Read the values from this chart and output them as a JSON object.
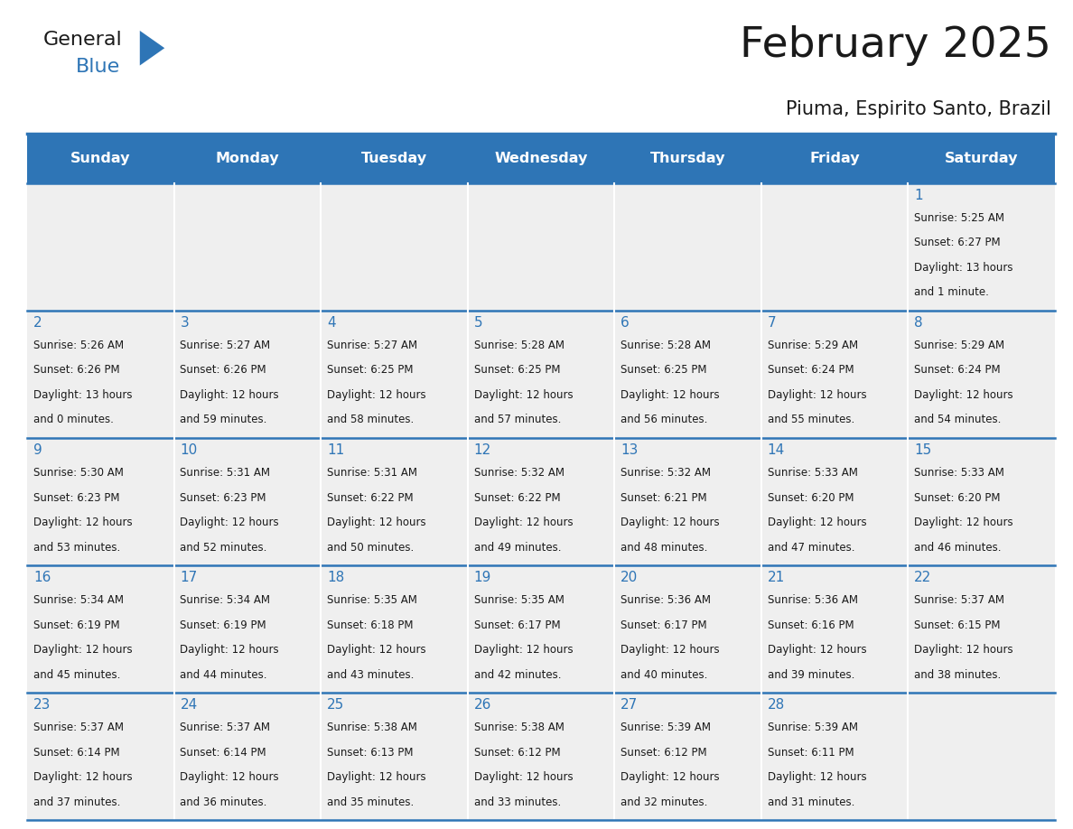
{
  "title": "February 2025",
  "subtitle": "Piuma, Espirito Santo, Brazil",
  "days_of_week": [
    "Sunday",
    "Monday",
    "Tuesday",
    "Wednesday",
    "Thursday",
    "Friday",
    "Saturday"
  ],
  "header_bg": "#2E75B6",
  "header_text": "#FFFFFF",
  "cell_bg": "#EFEFEF",
  "separator_color": "#2E75B6",
  "day_number_color": "#2E75B6",
  "text_color": "#1a1a1a",
  "logo_color_general": "#1a1a1a",
  "logo_color_blue": "#2E75B6",
  "weeks": [
    [
      {
        "day": null,
        "info": null
      },
      {
        "day": null,
        "info": null
      },
      {
        "day": null,
        "info": null
      },
      {
        "day": null,
        "info": null
      },
      {
        "day": null,
        "info": null
      },
      {
        "day": null,
        "info": null
      },
      {
        "day": 1,
        "info": "Sunrise: 5:25 AM\nSunset: 6:27 PM\nDaylight: 13 hours\nand 1 minute."
      }
    ],
    [
      {
        "day": 2,
        "info": "Sunrise: 5:26 AM\nSunset: 6:26 PM\nDaylight: 13 hours\nand 0 minutes."
      },
      {
        "day": 3,
        "info": "Sunrise: 5:27 AM\nSunset: 6:26 PM\nDaylight: 12 hours\nand 59 minutes."
      },
      {
        "day": 4,
        "info": "Sunrise: 5:27 AM\nSunset: 6:25 PM\nDaylight: 12 hours\nand 58 minutes."
      },
      {
        "day": 5,
        "info": "Sunrise: 5:28 AM\nSunset: 6:25 PM\nDaylight: 12 hours\nand 57 minutes."
      },
      {
        "day": 6,
        "info": "Sunrise: 5:28 AM\nSunset: 6:25 PM\nDaylight: 12 hours\nand 56 minutes."
      },
      {
        "day": 7,
        "info": "Sunrise: 5:29 AM\nSunset: 6:24 PM\nDaylight: 12 hours\nand 55 minutes."
      },
      {
        "day": 8,
        "info": "Sunrise: 5:29 AM\nSunset: 6:24 PM\nDaylight: 12 hours\nand 54 minutes."
      }
    ],
    [
      {
        "day": 9,
        "info": "Sunrise: 5:30 AM\nSunset: 6:23 PM\nDaylight: 12 hours\nand 53 minutes."
      },
      {
        "day": 10,
        "info": "Sunrise: 5:31 AM\nSunset: 6:23 PM\nDaylight: 12 hours\nand 52 minutes."
      },
      {
        "day": 11,
        "info": "Sunrise: 5:31 AM\nSunset: 6:22 PM\nDaylight: 12 hours\nand 50 minutes."
      },
      {
        "day": 12,
        "info": "Sunrise: 5:32 AM\nSunset: 6:22 PM\nDaylight: 12 hours\nand 49 minutes."
      },
      {
        "day": 13,
        "info": "Sunrise: 5:32 AM\nSunset: 6:21 PM\nDaylight: 12 hours\nand 48 minutes."
      },
      {
        "day": 14,
        "info": "Sunrise: 5:33 AM\nSunset: 6:20 PM\nDaylight: 12 hours\nand 47 minutes."
      },
      {
        "day": 15,
        "info": "Sunrise: 5:33 AM\nSunset: 6:20 PM\nDaylight: 12 hours\nand 46 minutes."
      }
    ],
    [
      {
        "day": 16,
        "info": "Sunrise: 5:34 AM\nSunset: 6:19 PM\nDaylight: 12 hours\nand 45 minutes."
      },
      {
        "day": 17,
        "info": "Sunrise: 5:34 AM\nSunset: 6:19 PM\nDaylight: 12 hours\nand 44 minutes."
      },
      {
        "day": 18,
        "info": "Sunrise: 5:35 AM\nSunset: 6:18 PM\nDaylight: 12 hours\nand 43 minutes."
      },
      {
        "day": 19,
        "info": "Sunrise: 5:35 AM\nSunset: 6:17 PM\nDaylight: 12 hours\nand 42 minutes."
      },
      {
        "day": 20,
        "info": "Sunrise: 5:36 AM\nSunset: 6:17 PM\nDaylight: 12 hours\nand 40 minutes."
      },
      {
        "day": 21,
        "info": "Sunrise: 5:36 AM\nSunset: 6:16 PM\nDaylight: 12 hours\nand 39 minutes."
      },
      {
        "day": 22,
        "info": "Sunrise: 5:37 AM\nSunset: 6:15 PM\nDaylight: 12 hours\nand 38 minutes."
      }
    ],
    [
      {
        "day": 23,
        "info": "Sunrise: 5:37 AM\nSunset: 6:14 PM\nDaylight: 12 hours\nand 37 minutes."
      },
      {
        "day": 24,
        "info": "Sunrise: 5:37 AM\nSunset: 6:14 PM\nDaylight: 12 hours\nand 36 minutes."
      },
      {
        "day": 25,
        "info": "Sunrise: 5:38 AM\nSunset: 6:13 PM\nDaylight: 12 hours\nand 35 minutes."
      },
      {
        "day": 26,
        "info": "Sunrise: 5:38 AM\nSunset: 6:12 PM\nDaylight: 12 hours\nand 33 minutes."
      },
      {
        "day": 27,
        "info": "Sunrise: 5:39 AM\nSunset: 6:12 PM\nDaylight: 12 hours\nand 32 minutes."
      },
      {
        "day": 28,
        "info": "Sunrise: 5:39 AM\nSunset: 6:11 PM\nDaylight: 12 hours\nand 31 minutes."
      },
      {
        "day": null,
        "info": null
      }
    ]
  ]
}
